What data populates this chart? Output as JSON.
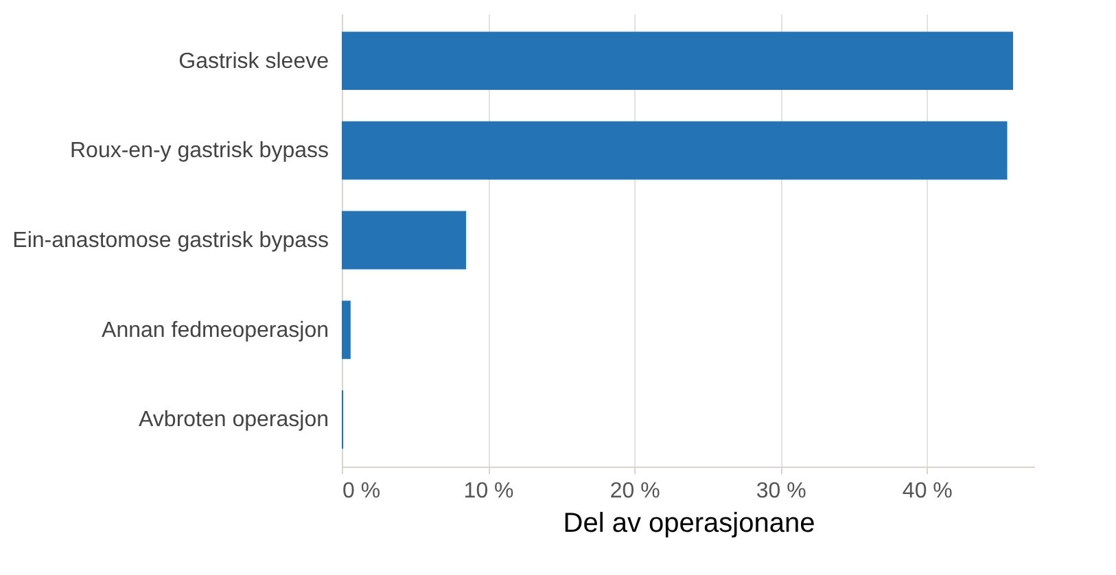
{
  "chart_data": {
    "type": "bar",
    "orientation": "horizontal",
    "xlabel": "Del av operasjonane",
    "categories": [
      "Gastrisk sleeve",
      "Roux-en-y gastrisk bypass",
      "Ein-anastomose gastrisk bypass",
      "Annan fedmeoperasjon",
      "Avbroten operasjon"
    ],
    "values": [
      45.9,
      45.5,
      8.5,
      0.6,
      0.1
    ],
    "color": "#2373b5",
    "xlim": [
      0,
      47.4
    ],
    "xticks": [
      {
        "value": 0,
        "label": "0 %"
      },
      {
        "value": 10,
        "label": "10 %"
      },
      {
        "value": 20,
        "label": "20 %"
      },
      {
        "value": 30,
        "label": "30 %"
      },
      {
        "value": 40,
        "label": "40 %"
      }
    ],
    "grid": "x"
  }
}
